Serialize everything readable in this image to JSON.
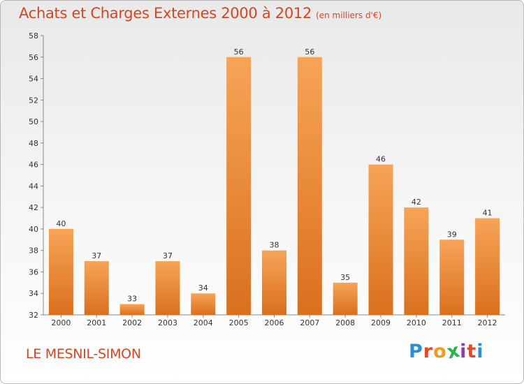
{
  "header": {
    "title": "Achats et Charges Externes 2000 à 2012",
    "subtitle": "(en milliers d'€)"
  },
  "footer": {
    "commune": "LE MESNIL-SIMON",
    "brand": {
      "letters": [
        "P",
        "r",
        "o",
        "x",
        "i",
        "t",
        "i"
      ],
      "colors": [
        "#2b8fd6",
        "#e24b2a",
        "#f29a1f",
        "#2bb24c",
        "#8c3fb3",
        "#e24b2a",
        "#2b8fd6"
      ]
    }
  },
  "chart_data": {
    "type": "bar",
    "categories": [
      "2000",
      "2001",
      "2002",
      "2003",
      "2004",
      "2005",
      "2006",
      "2007",
      "2008",
      "2009",
      "2010",
      "2011",
      "2012"
    ],
    "values": [
      40,
      37,
      33,
      37,
      34,
      56,
      38,
      56,
      35,
      46,
      42,
      39,
      41
    ],
    "title": "Achats et Charges Externes 2000 à 2012",
    "xlabel": "",
    "ylabel": "",
    "ylim": [
      32,
      58
    ],
    "yticks": [
      32,
      34,
      36,
      38,
      40,
      42,
      44,
      46,
      48,
      50,
      52,
      54,
      56,
      58
    ],
    "grid": false,
    "bar_color": "#f0933f"
  }
}
